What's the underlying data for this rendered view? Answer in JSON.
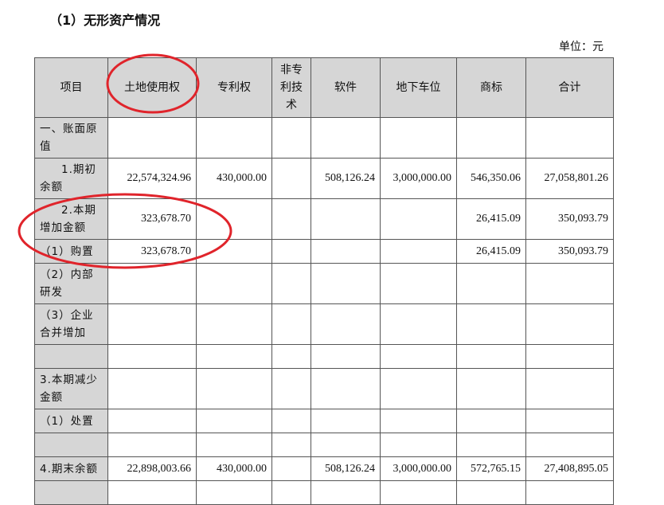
{
  "title": "（1）无形资产情况",
  "unit": "单位：元",
  "columns": [
    "项目",
    "土地使用权",
    "专利权",
    "非专利技术",
    "软件",
    "地下车位",
    "商标",
    "合计"
  ],
  "rows": [
    {
      "label": "一、账面原值",
      "values": [
        "",
        "",
        "",
        "",
        "",
        "",
        ""
      ]
    },
    {
      "label": "1.期初余额",
      "values": [
        "22,574,324.96",
        "430,000.00",
        "",
        "508,126.24",
        "3,000,000.00",
        "546,350.06",
        "27,058,801.26"
      ]
    },
    {
      "label": "2.本期增加金额",
      "values": [
        "323,678.70",
        "",
        "",
        "",
        "",
        "26,415.09",
        "350,093.79"
      ]
    },
    {
      "label": "（1）购置",
      "values": [
        "323,678.70",
        "",
        "",
        "",
        "",
        "26,415.09",
        "350,093.79"
      ]
    },
    {
      "label": "（2）内部研发",
      "values": [
        "",
        "",
        "",
        "",
        "",
        "",
        ""
      ]
    },
    {
      "label": "（3）企业合并增加",
      "values": [
        "",
        "",
        "",
        "",
        "",
        "",
        ""
      ]
    },
    {
      "label": "",
      "values": [
        "",
        "",
        "",
        "",
        "",
        "",
        ""
      ]
    },
    {
      "label": "3.本期减少金额",
      "values": [
        "",
        "",
        "",
        "",
        "",
        "",
        ""
      ]
    },
    {
      "label": "（1）处置",
      "values": [
        "",
        "",
        "",
        "",
        "",
        "",
        ""
      ]
    },
    {
      "label": "",
      "values": [
        "",
        "",
        "",
        "",
        "",
        "",
        ""
      ]
    },
    {
      "label": "4.期末余额",
      "values": [
        "22,898,003.66",
        "430,000.00",
        "",
        "508,126.24",
        "3,000,000.00",
        "572,765.15",
        "27,408,895.05"
      ]
    },
    {
      "label": "",
      "values": [
        "",
        "",
        "",
        "",
        "",
        "",
        ""
      ]
    }
  ],
  "annotation_color": "#e0242b"
}
